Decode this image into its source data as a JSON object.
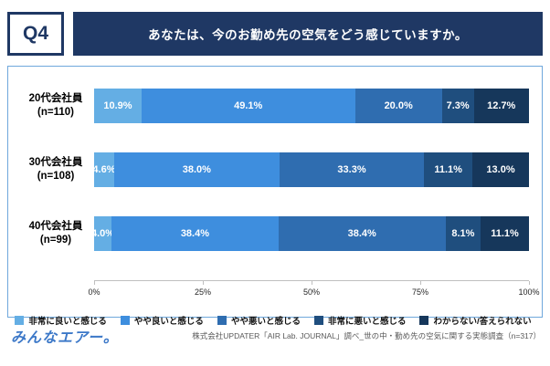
{
  "header": {
    "q_label": "Q4",
    "title": "あなたは、今のお勤め先の空気をどう感じていますか。"
  },
  "chart_data": {
    "type": "bar",
    "stacked": true,
    "orientation": "horizontal",
    "categories": [
      "20代会社員",
      "30代会社員",
      "40代会社員"
    ],
    "category_sublabels": [
      "(n=110)",
      "(n=108)",
      "(n=99)"
    ],
    "series": [
      {
        "name": "非常に良いと感じる",
        "color": "#64AEE4",
        "values": [
          10.9,
          4.6,
          4.0
        ]
      },
      {
        "name": "やや良いと感じる",
        "color": "#3E8EDE",
        "values": [
          49.1,
          38.0,
          38.4
        ]
      },
      {
        "name": "やや悪いと感じる",
        "color": "#2F6DB0",
        "values": [
          20.0,
          33.3,
          38.4
        ]
      },
      {
        "name": "非常に悪いと感じる",
        "color": "#1F4E7E",
        "values": [
          7.3,
          11.1,
          8.1
        ]
      },
      {
        "name": "わからない/答えられない",
        "color": "#16375B",
        "values": [
          12.7,
          13.0,
          11.1
        ]
      }
    ],
    "xlim": [
      0,
      100
    ],
    "x_ticks": [
      0,
      25,
      50,
      75,
      100
    ],
    "x_tick_labels": [
      "0%",
      "25%",
      "50%",
      "75%",
      "100%"
    ],
    "value_suffix": "%",
    "legend_position": "bottom",
    "grid": false
  },
  "colors": {
    "banner_navy": "#1F3864",
    "panel_border": "#6FA8DC",
    "logo_blue": "#3C78C8"
  },
  "footer": {
    "logo": "みんなエアー。",
    "source": "株式会社UPDATER「AIR Lab. JOURNAL」調べ_世の中・勤め先の空気に関する実態調査（n=317）"
  }
}
